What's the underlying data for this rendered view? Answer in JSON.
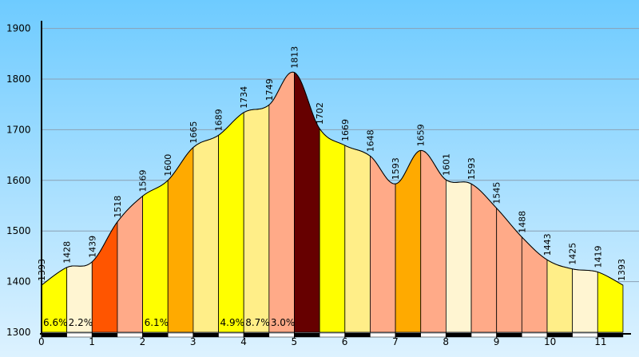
{
  "chart_data": {
    "type": "area",
    "title": "",
    "xlabel": "",
    "ylabel": "",
    "xlim": [
      0,
      11.6
    ],
    "ylim": [
      1300,
      1920
    ],
    "grid": "horizontal",
    "y_ticks": [
      "1300",
      "1400",
      "1500",
      "1600",
      "1700",
      "1800",
      "1900"
    ],
    "x_ticks": [
      "0",
      "1",
      "2",
      "3",
      "4",
      "5",
      "6",
      "7",
      "8",
      "9",
      "10",
      "11"
    ],
    "points": [
      {
        "x": 0.0,
        "y": 1393,
        "label": "1393"
      },
      {
        "x": 0.5,
        "y": 1428,
        "label": "1428"
      },
      {
        "x": 1.0,
        "y": 1439,
        "label": "1439"
      },
      {
        "x": 1.5,
        "y": 1518,
        "label": "1518"
      },
      {
        "x": 2.0,
        "y": 1569,
        "label": "1569"
      },
      {
        "x": 2.5,
        "y": 1600,
        "label": "1600"
      },
      {
        "x": 3.0,
        "y": 1665,
        "label": "1665"
      },
      {
        "x": 3.5,
        "y": 1689,
        "label": "1689"
      },
      {
        "x": 4.0,
        "y": 1734,
        "label": "1734"
      },
      {
        "x": 4.5,
        "y": 1749,
        "label": "1749"
      },
      {
        "x": 5.0,
        "y": 1813,
        "label": "1813"
      },
      {
        "x": 5.5,
        "y": 1702,
        "label": "1702"
      },
      {
        "x": 6.0,
        "y": 1669,
        "label": "1669"
      },
      {
        "x": 6.5,
        "y": 1648,
        "label": "1648"
      },
      {
        "x": 7.0,
        "y": 1593,
        "label": "1593"
      },
      {
        "x": 7.5,
        "y": 1659,
        "label": "1659"
      },
      {
        "x": 8.0,
        "y": 1601,
        "label": "1601"
      },
      {
        "x": 8.5,
        "y": 1593,
        "label": "1593"
      },
      {
        "x": 9.0,
        "y": 1545,
        "label": "1545"
      },
      {
        "x": 9.5,
        "y": 1488,
        "label": "1488"
      },
      {
        "x": 10.0,
        "y": 1443,
        "label": "1443"
      },
      {
        "x": 10.5,
        "y": 1425,
        "label": "1425"
      },
      {
        "x": 11.0,
        "y": 1419,
        "label": "1419"
      },
      {
        "x": 11.5,
        "y": 1393,
        "label": "1393"
      }
    ],
    "segment_colors": [
      "#ffff00",
      "#fff5d2",
      "#ff5500",
      "#ffaa88",
      "#ffff00",
      "#ffaa00",
      "#ffee88",
      "#ffff00",
      "#ffee88",
      "#ffaa88",
      "#660000",
      "#ffff00",
      "#ffee88",
      "#ffaa88",
      "#ffaa00",
      "#ffaa88",
      "#fff5d2",
      "#ffaa88",
      "#ffaa88",
      "#ffaa88",
      "#ffee88",
      "#fff5d2",
      "#ffff00"
    ],
    "grade_labels": [
      {
        "segment": 0,
        "text": "6.6%"
      },
      {
        "segment": 1,
        "text": "2.2%"
      },
      {
        "segment": 4,
        "text": "6.1%"
      },
      {
        "segment": 7,
        "text": "4.9%"
      },
      {
        "segment": 8,
        "text": "8.7%"
      },
      {
        "segment": 9,
        "text": "3.0%"
      }
    ],
    "colors": {
      "background_top": "#6ecbff",
      "background_bottom": "#ddf2ff",
      "gridline": "#8aa0b4",
      "outline": "#000000"
    }
  }
}
